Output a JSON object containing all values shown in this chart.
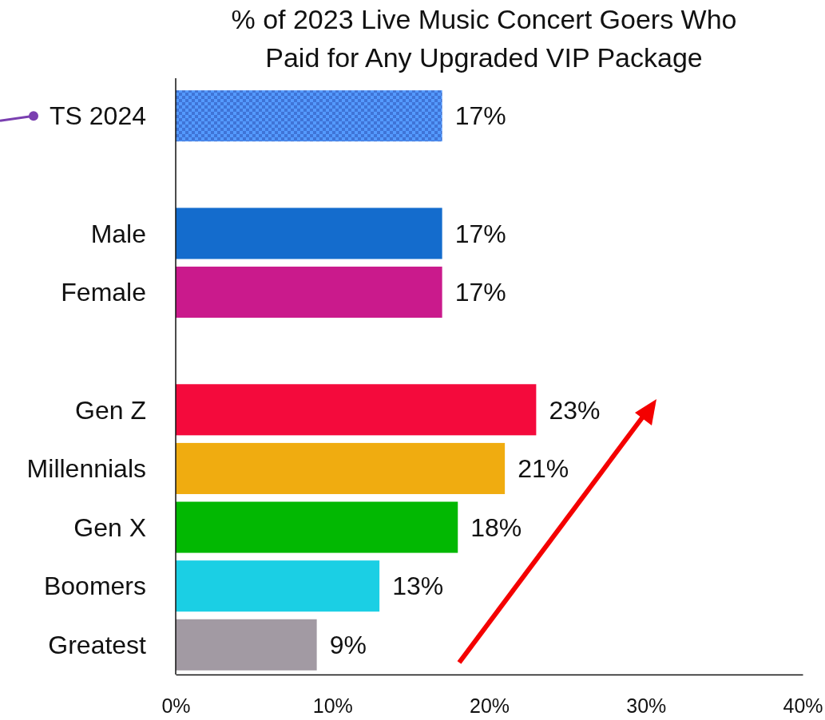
{
  "chart_data": {
    "type": "bar",
    "orientation": "horizontal",
    "title": "% of 2023 Live Music Concert Goers Who Paid for Any Upgraded VIP Package",
    "categories": [
      "TS 2024",
      null,
      "Male",
      "Female",
      null,
      "Gen Z",
      "Millennials",
      "Gen X",
      "Boomers",
      "Greatest"
    ],
    "values": [
      17,
      null,
      17,
      17,
      null,
      23,
      21,
      18,
      13,
      9
    ],
    "colors": [
      "#3f74d6",
      null,
      "#146ccd",
      "#ca1a8c",
      null,
      "#f40a3c",
      "#f0ac10",
      "#02b802",
      "#1bcfe4",
      "#a29aa3"
    ],
    "value_labels": [
      "17%",
      null,
      "17%",
      "17%",
      null,
      "23%",
      "21%",
      "18%",
      "13%",
      "9%"
    ],
    "xlim": [
      0,
      40
    ],
    "xticks": [
      {
        "value": 0,
        "label": "0%"
      },
      {
        "value": 10,
        "label": "10%"
      },
      {
        "value": 20,
        "label": "20%"
      },
      {
        "value": 30,
        "label": "30%"
      },
      {
        "value": 40,
        "label": "40%"
      }
    ],
    "grid": false
  }
}
